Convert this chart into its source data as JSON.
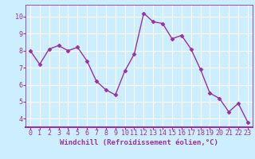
{
  "x": [
    0,
    1,
    2,
    3,
    4,
    5,
    6,
    7,
    8,
    9,
    10,
    11,
    12,
    13,
    14,
    15,
    16,
    17,
    18,
    19,
    20,
    21,
    22,
    23
  ],
  "y": [
    8.0,
    7.2,
    8.1,
    8.3,
    8.0,
    8.2,
    7.4,
    6.2,
    5.7,
    5.4,
    6.8,
    7.8,
    10.2,
    9.7,
    9.6,
    8.7,
    8.9,
    8.1,
    6.9,
    5.5,
    5.2,
    4.4,
    4.9,
    3.8
  ],
  "line_color": "#9B30A0",
  "marker": "D",
  "marker_size": 2.5,
  "linewidth": 1.0,
  "xlabel": "Windchill (Refroidissement éolien,°C)",
  "xlim": [
    -0.5,
    23.5
  ],
  "ylim": [
    3.5,
    10.7
  ],
  "yticks": [
    4,
    5,
    6,
    7,
    8,
    9,
    10
  ],
  "xticks": [
    0,
    1,
    2,
    3,
    4,
    5,
    6,
    7,
    8,
    9,
    10,
    11,
    12,
    13,
    14,
    15,
    16,
    17,
    18,
    19,
    20,
    21,
    22,
    23
  ],
  "bg_color": "#cceeff",
  "grid_color": "#ffffff",
  "font_color": "#9B30A0",
  "xlabel_fontsize": 6.5,
  "tick_fontsize": 6.0,
  "axis_linewidth": 1.5
}
